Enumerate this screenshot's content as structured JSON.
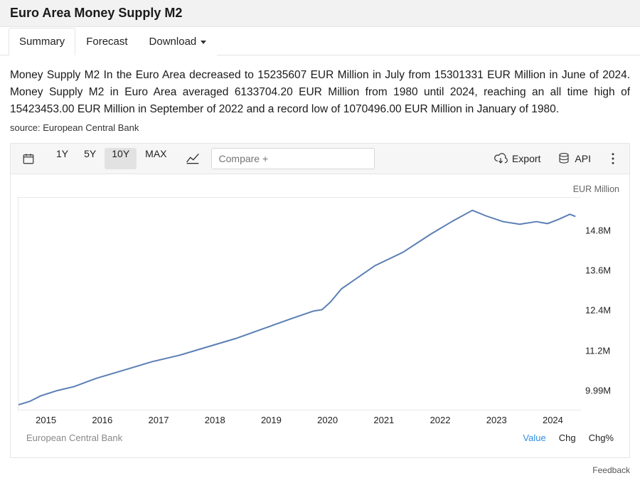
{
  "header": {
    "title": "Euro Area Money Supply M2"
  },
  "tabs": {
    "items": [
      {
        "label": "Summary",
        "active": true
      },
      {
        "label": "Forecast",
        "active": false
      },
      {
        "label": "Download",
        "active": false,
        "dropdown": true
      }
    ]
  },
  "summary": {
    "text": "Money Supply M2 In the Euro Area decreased to 15235607 EUR Million in July from 15301331 EUR Million in June of 2024. Money Supply M2 in Euro Area averaged 6133704.20 EUR Million from 1980 until 2024, reaching an all time high of 15423453.00 EUR Million in September of 2022 and a record low of 1070496.00 EUR Million in January of 1980.",
    "source_label": "source: European Central Bank"
  },
  "toolbar": {
    "ranges": [
      {
        "label": "1Y",
        "active": false
      },
      {
        "label": "5Y",
        "active": false
      },
      {
        "label": "10Y",
        "active": true
      },
      {
        "label": "MAX",
        "active": false
      }
    ],
    "compare_placeholder": "Compare +",
    "export_label": "Export",
    "api_label": "API"
  },
  "chart": {
    "type": "line",
    "unit_label": "EUR Million",
    "line_color": "#5b7fb5",
    "line_width": 2,
    "background_color": "#ffffff",
    "border_color": "#e8e8e8",
    "x_labels": [
      "2015",
      "2016",
      "2017",
      "2018",
      "2019",
      "2020",
      "2021",
      "2022",
      "2023",
      "2024"
    ],
    "y_ticks": [
      {
        "label": "14.8M",
        "value": 14800000
      },
      {
        "label": "13.6M",
        "value": 13600000
      },
      {
        "label": "12.4M",
        "value": 12400000
      },
      {
        "label": "11.2M",
        "value": 11200000
      },
      {
        "label": "9.99M",
        "value": 9990000
      }
    ],
    "ylim": [
      9400000,
      15800000
    ],
    "xlim": [
      2014.6,
      2024.7
    ],
    "series": [
      {
        "x": 2014.6,
        "y": 9550000
      },
      {
        "x": 2014.8,
        "y": 9650000
      },
      {
        "x": 2015.0,
        "y": 9820000
      },
      {
        "x": 2015.3,
        "y": 9980000
      },
      {
        "x": 2015.6,
        "y": 10100000
      },
      {
        "x": 2016.0,
        "y": 10350000
      },
      {
        "x": 2016.5,
        "y": 10600000
      },
      {
        "x": 2017.0,
        "y": 10850000
      },
      {
        "x": 2017.5,
        "y": 11050000
      },
      {
        "x": 2018.0,
        "y": 11300000
      },
      {
        "x": 2018.5,
        "y": 11550000
      },
      {
        "x": 2019.0,
        "y": 11850000
      },
      {
        "x": 2019.5,
        "y": 12150000
      },
      {
        "x": 2019.9,
        "y": 12380000
      },
      {
        "x": 2020.05,
        "y": 12420000
      },
      {
        "x": 2020.2,
        "y": 12650000
      },
      {
        "x": 2020.4,
        "y": 13050000
      },
      {
        "x": 2020.7,
        "y": 13400000
      },
      {
        "x": 2021.0,
        "y": 13750000
      },
      {
        "x": 2021.5,
        "y": 14150000
      },
      {
        "x": 2022.0,
        "y": 14700000
      },
      {
        "x": 2022.4,
        "y": 15100000
      },
      {
        "x": 2022.75,
        "y": 15420000
      },
      {
        "x": 2023.0,
        "y": 15250000
      },
      {
        "x": 2023.3,
        "y": 15080000
      },
      {
        "x": 2023.6,
        "y": 15000000
      },
      {
        "x": 2023.9,
        "y": 15080000
      },
      {
        "x": 2024.1,
        "y": 15020000
      },
      {
        "x": 2024.3,
        "y": 15150000
      },
      {
        "x": 2024.5,
        "y": 15300000
      },
      {
        "x": 2024.6,
        "y": 15235000
      }
    ],
    "footer_source": "European Central Bank",
    "footer_links": [
      {
        "label": "Value",
        "active": true
      },
      {
        "label": "Chg",
        "active": false
      },
      {
        "label": "Chg%",
        "active": false
      }
    ]
  },
  "feedback_label": "Feedback"
}
